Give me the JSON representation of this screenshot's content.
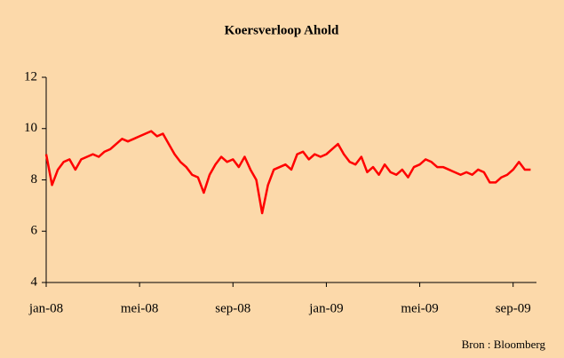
{
  "chart_data": {
    "type": "line",
    "title": "Koersverloop Ahold",
    "source": "Bron : Bloomberg",
    "x": [
      0,
      0.25,
      0.5,
      0.75,
      1,
      1.25,
      1.5,
      1.75,
      2,
      2.25,
      2.5,
      2.75,
      3,
      3.25,
      3.5,
      3.75,
      4,
      4.25,
      4.5,
      4.75,
      5,
      5.25,
      5.5,
      5.75,
      6,
      6.25,
      6.5,
      6.75,
      7,
      7.25,
      7.5,
      7.75,
      8,
      8.25,
      8.5,
      8.75,
      9,
      9.25,
      9.5,
      9.75,
      10,
      10.25,
      10.5,
      10.75,
      11,
      11.25,
      11.5,
      11.75,
      12,
      12.25,
      12.5,
      12.75,
      13,
      13.25,
      13.5,
      13.75,
      14,
      14.25,
      14.5,
      14.75,
      15,
      15.25,
      15.5,
      15.75,
      16,
      16.25,
      16.5,
      16.75,
      17,
      17.25,
      17.5,
      17.75,
      18,
      18.25,
      18.5,
      18.75,
      19,
      19.25,
      19.5,
      19.75,
      20,
      20.25,
      20.5,
      20.75
    ],
    "series": [
      {
        "name": "Ahold",
        "color": "#ff0000",
        "values": [
          9.0,
          7.8,
          8.4,
          8.7,
          8.8,
          8.4,
          8.8,
          8.9,
          9.0,
          8.9,
          9.1,
          9.2,
          9.4,
          9.6,
          9.5,
          9.6,
          9.7,
          9.8,
          9.9,
          9.7,
          9.8,
          9.4,
          9.0,
          8.7,
          8.5,
          8.2,
          8.1,
          7.5,
          8.2,
          8.6,
          8.9,
          8.7,
          8.8,
          8.5,
          8.9,
          8.4,
          8.0,
          6.7,
          7.8,
          8.4,
          8.5,
          8.6,
          8.4,
          9.0,
          9.1,
          8.8,
          9.0,
          8.9,
          9.0,
          9.2,
          9.4,
          9.0,
          8.7,
          8.6,
          8.9,
          8.3,
          8.5,
          8.2,
          8.6,
          8.3,
          8.2,
          8.4,
          8.1,
          8.5,
          8.6,
          8.8,
          8.7,
          8.5,
          8.5,
          8.4,
          8.3,
          8.2,
          8.3,
          8.2,
          8.4,
          8.3,
          7.9,
          7.9,
          8.1,
          8.2,
          8.4,
          8.7,
          8.4,
          8.4
        ]
      }
    ],
    "xlim": [
      0,
      21
    ],
    "xticks": [
      {
        "value": 0,
        "label": "jan-08"
      },
      {
        "value": 4,
        "label": "mei-08"
      },
      {
        "value": 8,
        "label": "sep-08"
      },
      {
        "value": 12,
        "label": "jan-09"
      },
      {
        "value": 16,
        "label": "mei-09"
      },
      {
        "value": 20,
        "label": "sep-09"
      }
    ],
    "ylim": [
      4,
      12
    ],
    "yticks": [
      4,
      6,
      8,
      10,
      12
    ],
    "grid": false
  }
}
